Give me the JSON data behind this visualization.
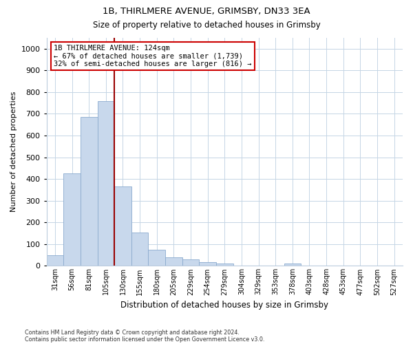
{
  "title_line1": "1B, THIRLMERE AVENUE, GRIMSBY, DN33 3EA",
  "title_line2": "Size of property relative to detached houses in Grimsby",
  "xlabel": "Distribution of detached houses by size in Grimsby",
  "ylabel": "Number of detached properties",
  "bar_labels": [
    "31sqm",
    "56sqm",
    "81sqm",
    "105sqm",
    "130sqm",
    "155sqm",
    "180sqm",
    "205sqm",
    "229sqm",
    "254sqm",
    "279sqm",
    "304sqm",
    "329sqm",
    "353sqm",
    "378sqm",
    "403sqm",
    "428sqm",
    "453sqm",
    "477sqm",
    "502sqm",
    "527sqm"
  ],
  "bar_vals": [
    50,
    425,
    685,
    760,
    365,
    152,
    75,
    40,
    30,
    18,
    10,
    0,
    0,
    0,
    10,
    0,
    0,
    0,
    0,
    0,
    0
  ],
  "bar_color": "#c8d8ec",
  "bar_edge_color": "#8aaace",
  "ylim": [
    0,
    1050
  ],
  "yticks": [
    0,
    100,
    200,
    300,
    400,
    500,
    600,
    700,
    800,
    900,
    1000
  ],
  "vline_index": 4,
  "vline_color": "#990000",
  "annotation_text": "1B THIRLMERE AVENUE: 124sqm\n← 67% of detached houses are smaller (1,739)\n32% of semi-detached houses are larger (816) →",
  "annotation_box_facecolor": "#ffffff",
  "annotation_box_edgecolor": "#cc0000",
  "footer_line1": "Contains HM Land Registry data © Crown copyright and database right 2024.",
  "footer_line2": "Contains public sector information licensed under the Open Government Licence v3.0.",
  "background_color": "#ffffff",
  "grid_color": "#c5d5e5"
}
